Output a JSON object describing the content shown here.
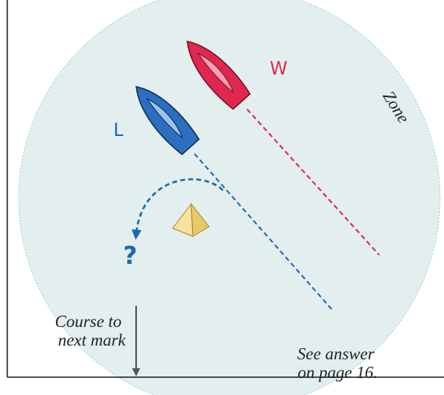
{
  "labels": {
    "windward": "W",
    "leeward": "L",
    "zone": "Zone",
    "question": "?",
    "course": [
      "Course to",
      "next mark"
    ],
    "answer": [
      "See answer",
      "on page 16."
    ]
  }
}
